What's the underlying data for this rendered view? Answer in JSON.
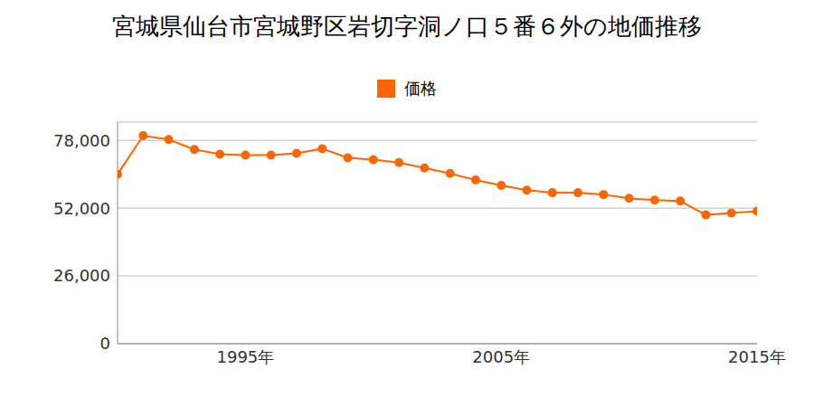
{
  "chart_data": {
    "type": "line",
    "title": "宮城県仙台市宮城野区岩切字洞ノ口５番６外の地価推移",
    "x": [
      1990,
      1991,
      1992,
      1993,
      1994,
      1995,
      1996,
      1997,
      1998,
      1999,
      2000,
      2001,
      2002,
      2003,
      2004,
      2005,
      2006,
      2007,
      2008,
      2009,
      2010,
      2011,
      2012,
      2013,
      2014,
      2015
    ],
    "series": [
      {
        "name": "価格",
        "color": "#ff6600",
        "marker": "circle",
        "values": [
          65000,
          79800,
          78300,
          74500,
          72700,
          72300,
          72300,
          73000,
          74800,
          71300,
          70600,
          69500,
          67400,
          65300,
          62800,
          60700,
          58900,
          57900,
          57900,
          57200,
          55800,
          55100,
          54700,
          49400,
          50100,
          50800
        ]
      }
    ],
    "xlim": [
      1990,
      2015
    ],
    "xticks": [
      {
        "value": 1995,
        "label": "1995年"
      },
      {
        "value": 2005,
        "label": "2005年"
      },
      {
        "value": 2015,
        "label": "2015年"
      }
    ],
    "ylim": [
      0,
      85000
    ],
    "yticks": [
      0,
      {
        "value": 26000,
        "label": "26,000"
      },
      {
        "value": 52000,
        "label": "52,000"
      },
      {
        "value": 78000,
        "label": "78,000"
      }
    ],
    "grid": true,
    "legend": "top"
  }
}
